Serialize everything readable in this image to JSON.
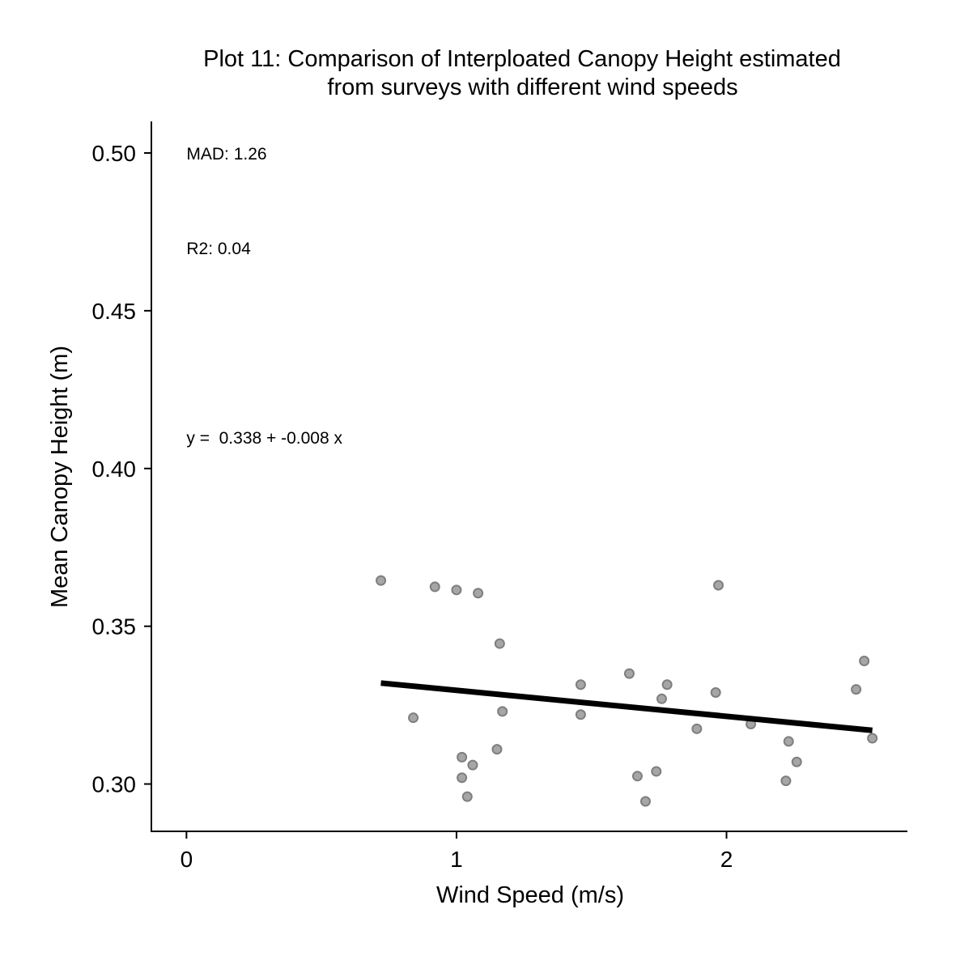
{
  "chart_data": {
    "type": "scatter",
    "title_lines": [
      "Plot 11: Comparison of Interploated Canopy Height estimated",
      "from surveys with different wind speeds"
    ],
    "xlabel": "Wind Speed (m/s)",
    "ylabel": "Mean Canopy Height (m)",
    "xlim": [
      -0.13,
      2.67
    ],
    "ylim": [
      0.285,
      0.51
    ],
    "x_ticks": [
      0,
      1,
      2
    ],
    "x_tick_labels": [
      "0",
      "1",
      "2"
    ],
    "y_ticks": [
      0.3,
      0.35,
      0.4,
      0.45,
      0.5
    ],
    "y_tick_labels": [
      "0.30",
      "0.35",
      "0.40",
      "0.45",
      "0.50"
    ],
    "grid": false,
    "legend": "none",
    "annotations": [
      {
        "text": "MAD: 1.26",
        "x": 0,
        "y": 0.5
      },
      {
        "text": "R2: 0.04",
        "x": 0,
        "y": 0.47
      },
      {
        "text": "y =  0.338 + -0.008 x",
        "x": 0,
        "y": 0.41
      }
    ],
    "points": [
      {
        "x": 0.72,
        "y": 0.3645
      },
      {
        "x": 0.84,
        "y": 0.321
      },
      {
        "x": 0.92,
        "y": 0.3625
      },
      {
        "x": 1.0,
        "y": 0.3615
      },
      {
        "x": 1.02,
        "y": 0.3085
      },
      {
        "x": 1.02,
        "y": 0.302
      },
      {
        "x": 1.04,
        "y": 0.296
      },
      {
        "x": 1.06,
        "y": 0.306
      },
      {
        "x": 1.08,
        "y": 0.3605
      },
      {
        "x": 1.15,
        "y": 0.311
      },
      {
        "x": 1.16,
        "y": 0.3445
      },
      {
        "x": 1.17,
        "y": 0.323
      },
      {
        "x": 1.46,
        "y": 0.3315
      },
      {
        "x": 1.46,
        "y": 0.322
      },
      {
        "x": 1.64,
        "y": 0.335
      },
      {
        "x": 1.67,
        "y": 0.3025
      },
      {
        "x": 1.7,
        "y": 0.2945
      },
      {
        "x": 1.74,
        "y": 0.304
      },
      {
        "x": 1.76,
        "y": 0.327
      },
      {
        "x": 1.78,
        "y": 0.3315
      },
      {
        "x": 1.89,
        "y": 0.3175
      },
      {
        "x": 1.96,
        "y": 0.329
      },
      {
        "x": 1.97,
        "y": 0.363
      },
      {
        "x": 2.09,
        "y": 0.319
      },
      {
        "x": 2.22,
        "y": 0.301
      },
      {
        "x": 2.23,
        "y": 0.3135
      },
      {
        "x": 2.26,
        "y": 0.307
      },
      {
        "x": 2.48,
        "y": 0.33
      },
      {
        "x": 2.51,
        "y": 0.339
      },
      {
        "x": 2.54,
        "y": 0.3145
      }
    ],
    "fit_line": {
      "x": [
        0.72,
        2.54
      ],
      "y": [
        0.332,
        0.317
      ]
    },
    "colors": {
      "point_fill": "#a6a6a6",
      "point_stroke": "#7f7f7f",
      "fit_line": "#000000"
    }
  }
}
